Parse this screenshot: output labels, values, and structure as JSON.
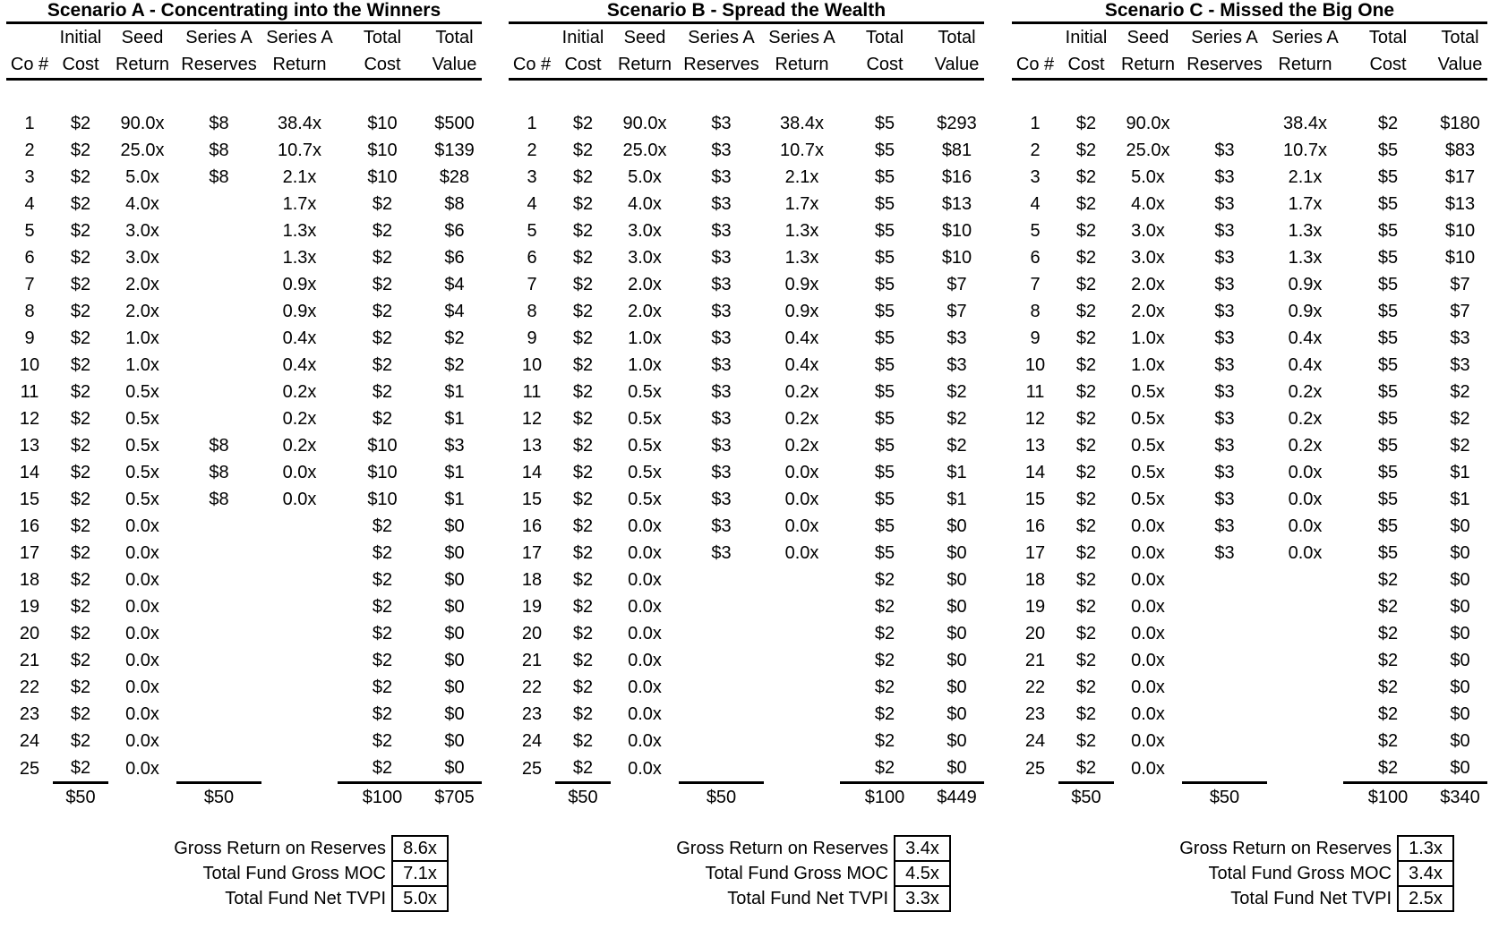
{
  "scenarios": [
    {
      "title": "Scenario A - Concentrating into the Winners",
      "columns": [
        {
          "top": "",
          "bottom": "Co #"
        },
        {
          "top": "Initial",
          "bottom": "Cost"
        },
        {
          "top": "Seed",
          "bottom": "Return"
        },
        {
          "top": "Series A",
          "bottom": "Reserves"
        },
        {
          "top": "Series A",
          "bottom": "Return"
        },
        {
          "top": "Total",
          "bottom": "Cost"
        },
        {
          "top": "Total",
          "bottom": "Value"
        }
      ],
      "rows": [
        [
          "1",
          "$2",
          "90.0x",
          "$8",
          "38.4x",
          "$10",
          "$500"
        ],
        [
          "2",
          "$2",
          "25.0x",
          "$8",
          "10.7x",
          "$10",
          "$139"
        ],
        [
          "3",
          "$2",
          "5.0x",
          "$8",
          "2.1x",
          "$10",
          "$28"
        ],
        [
          "4",
          "$2",
          "4.0x",
          "",
          "1.7x",
          "$2",
          "$8"
        ],
        [
          "5",
          "$2",
          "3.0x",
          "",
          "1.3x",
          "$2",
          "$6"
        ],
        [
          "6",
          "$2",
          "3.0x",
          "",
          "1.3x",
          "$2",
          "$6"
        ],
        [
          "7",
          "$2",
          "2.0x",
          "",
          "0.9x",
          "$2",
          "$4"
        ],
        [
          "8",
          "$2",
          "2.0x",
          "",
          "0.9x",
          "$2",
          "$4"
        ],
        [
          "9",
          "$2",
          "1.0x",
          "",
          "0.4x",
          "$2",
          "$2"
        ],
        [
          "10",
          "$2",
          "1.0x",
          "",
          "0.4x",
          "$2",
          "$2"
        ],
        [
          "11",
          "$2",
          "0.5x",
          "",
          "0.2x",
          "$2",
          "$1"
        ],
        [
          "12",
          "$2",
          "0.5x",
          "",
          "0.2x",
          "$2",
          "$1"
        ],
        [
          "13",
          "$2",
          "0.5x",
          "$8",
          "0.2x",
          "$10",
          "$3"
        ],
        [
          "14",
          "$2",
          "0.5x",
          "$8",
          "0.0x",
          "$10",
          "$1"
        ],
        [
          "15",
          "$2",
          "0.5x",
          "$8",
          "0.0x",
          "$10",
          "$1"
        ],
        [
          "16",
          "$2",
          "0.0x",
          "",
          "",
          "$2",
          "$0"
        ],
        [
          "17",
          "$2",
          "0.0x",
          "",
          "",
          "$2",
          "$0"
        ],
        [
          "18",
          "$2",
          "0.0x",
          "",
          "",
          "$2",
          "$0"
        ],
        [
          "19",
          "$2",
          "0.0x",
          "",
          "",
          "$2",
          "$0"
        ],
        [
          "20",
          "$2",
          "0.0x",
          "",
          "",
          "$2",
          "$0"
        ],
        [
          "21",
          "$2",
          "0.0x",
          "",
          "",
          "$2",
          "$0"
        ],
        [
          "22",
          "$2",
          "0.0x",
          "",
          "",
          "$2",
          "$0"
        ],
        [
          "23",
          "$2",
          "0.0x",
          "",
          "",
          "$2",
          "$0"
        ],
        [
          "24",
          "$2",
          "0.0x",
          "",
          "",
          "$2",
          "$0"
        ],
        [
          "25",
          "$2",
          "0.0x",
          "",
          "",
          "$2",
          "$0"
        ]
      ],
      "totals": [
        "",
        "$50",
        "",
        "$50",
        "",
        "$100",
        "$705"
      ],
      "summary": [
        {
          "label": "Gross Return on Reserves",
          "value": "8.6x"
        },
        {
          "label": "Total Fund Gross MOC",
          "value": "7.1x"
        },
        {
          "label": "Total Fund Net TVPI",
          "value": "5.0x"
        }
      ]
    },
    {
      "title": "Scenario B - Spread the Wealth",
      "columns": [
        {
          "top": "",
          "bottom": "Co #"
        },
        {
          "top": "Initial",
          "bottom": "Cost"
        },
        {
          "top": "Seed",
          "bottom": "Return"
        },
        {
          "top": "Series A",
          "bottom": "Reserves"
        },
        {
          "top": "Series A",
          "bottom": "Return"
        },
        {
          "top": "Total",
          "bottom": "Cost"
        },
        {
          "top": "Total",
          "bottom": "Value"
        }
      ],
      "rows": [
        [
          "1",
          "$2",
          "90.0x",
          "$3",
          "38.4x",
          "$5",
          "$293"
        ],
        [
          "2",
          "$2",
          "25.0x",
          "$3",
          "10.7x",
          "$5",
          "$81"
        ],
        [
          "3",
          "$2",
          "5.0x",
          "$3",
          "2.1x",
          "$5",
          "$16"
        ],
        [
          "4",
          "$2",
          "4.0x",
          "$3",
          "1.7x",
          "$5",
          "$13"
        ],
        [
          "5",
          "$2",
          "3.0x",
          "$3",
          "1.3x",
          "$5",
          "$10"
        ],
        [
          "6",
          "$2",
          "3.0x",
          "$3",
          "1.3x",
          "$5",
          "$10"
        ],
        [
          "7",
          "$2",
          "2.0x",
          "$3",
          "0.9x",
          "$5",
          "$7"
        ],
        [
          "8",
          "$2",
          "2.0x",
          "$3",
          "0.9x",
          "$5",
          "$7"
        ],
        [
          "9",
          "$2",
          "1.0x",
          "$3",
          "0.4x",
          "$5",
          "$3"
        ],
        [
          "10",
          "$2",
          "1.0x",
          "$3",
          "0.4x",
          "$5",
          "$3"
        ],
        [
          "11",
          "$2",
          "0.5x",
          "$3",
          "0.2x",
          "$5",
          "$2"
        ],
        [
          "12",
          "$2",
          "0.5x",
          "$3",
          "0.2x",
          "$5",
          "$2"
        ],
        [
          "13",
          "$2",
          "0.5x",
          "$3",
          "0.2x",
          "$5",
          "$2"
        ],
        [
          "14",
          "$2",
          "0.5x",
          "$3",
          "0.0x",
          "$5",
          "$1"
        ],
        [
          "15",
          "$2",
          "0.5x",
          "$3",
          "0.0x",
          "$5",
          "$1"
        ],
        [
          "16",
          "$2",
          "0.0x",
          "$3",
          "0.0x",
          "$5",
          "$0"
        ],
        [
          "17",
          "$2",
          "0.0x",
          "$3",
          "0.0x",
          "$5",
          "$0"
        ],
        [
          "18",
          "$2",
          "0.0x",
          "",
          "",
          "$2",
          "$0"
        ],
        [
          "19",
          "$2",
          "0.0x",
          "",
          "",
          "$2",
          "$0"
        ],
        [
          "20",
          "$2",
          "0.0x",
          "",
          "",
          "$2",
          "$0"
        ],
        [
          "21",
          "$2",
          "0.0x",
          "",
          "",
          "$2",
          "$0"
        ],
        [
          "22",
          "$2",
          "0.0x",
          "",
          "",
          "$2",
          "$0"
        ],
        [
          "23",
          "$2",
          "0.0x",
          "",
          "",
          "$2",
          "$0"
        ],
        [
          "24",
          "$2",
          "0.0x",
          "",
          "",
          "$2",
          "$0"
        ],
        [
          "25",
          "$2",
          "0.0x",
          "",
          "",
          "$2",
          "$0"
        ]
      ],
      "totals": [
        "",
        "$50",
        "",
        "$50",
        "",
        "$100",
        "$449"
      ],
      "summary": [
        {
          "label": "Gross Return on Reserves",
          "value": "3.4x"
        },
        {
          "label": "Total Fund Gross MOC",
          "value": "4.5x"
        },
        {
          "label": "Total Fund Net TVPI",
          "value": "3.3x"
        }
      ]
    },
    {
      "title": "Scenario C - Missed the Big One",
      "columns": [
        {
          "top": "",
          "bottom": "Co #"
        },
        {
          "top": "Initial",
          "bottom": "Cost"
        },
        {
          "top": "Seed",
          "bottom": "Return"
        },
        {
          "top": "Series A",
          "bottom": "Reserves"
        },
        {
          "top": "Series A",
          "bottom": "Return"
        },
        {
          "top": "Total",
          "bottom": "Cost"
        },
        {
          "top": "Total",
          "bottom": "Value"
        }
      ],
      "rows": [
        [
          "1",
          "$2",
          "90.0x",
          "",
          "38.4x",
          "$2",
          "$180"
        ],
        [
          "2",
          "$2",
          "25.0x",
          "$3",
          "10.7x",
          "$5",
          "$83"
        ],
        [
          "3",
          "$2",
          "5.0x",
          "$3",
          "2.1x",
          "$5",
          "$17"
        ],
        [
          "4",
          "$2",
          "4.0x",
          "$3",
          "1.7x",
          "$5",
          "$13"
        ],
        [
          "5",
          "$2",
          "3.0x",
          "$3",
          "1.3x",
          "$5",
          "$10"
        ],
        [
          "6",
          "$2",
          "3.0x",
          "$3",
          "1.3x",
          "$5",
          "$10"
        ],
        [
          "7",
          "$2",
          "2.0x",
          "$3",
          "0.9x",
          "$5",
          "$7"
        ],
        [
          "8",
          "$2",
          "2.0x",
          "$3",
          "0.9x",
          "$5",
          "$7"
        ],
        [
          "9",
          "$2",
          "1.0x",
          "$3",
          "0.4x",
          "$5",
          "$3"
        ],
        [
          "10",
          "$2",
          "1.0x",
          "$3",
          "0.4x",
          "$5",
          "$3"
        ],
        [
          "11",
          "$2",
          "0.5x",
          "$3",
          "0.2x",
          "$5",
          "$2"
        ],
        [
          "12",
          "$2",
          "0.5x",
          "$3",
          "0.2x",
          "$5",
          "$2"
        ],
        [
          "13",
          "$2",
          "0.5x",
          "$3",
          "0.2x",
          "$5",
          "$2"
        ],
        [
          "14",
          "$2",
          "0.5x",
          "$3",
          "0.0x",
          "$5",
          "$1"
        ],
        [
          "15",
          "$2",
          "0.5x",
          "$3",
          "0.0x",
          "$5",
          "$1"
        ],
        [
          "16",
          "$2",
          "0.0x",
          "$3",
          "0.0x",
          "$5",
          "$0"
        ],
        [
          "17",
          "$2",
          "0.0x",
          "$3",
          "0.0x",
          "$5",
          "$0"
        ],
        [
          "18",
          "$2",
          "0.0x",
          "",
          "",
          "$2",
          "$0"
        ],
        [
          "19",
          "$2",
          "0.0x",
          "",
          "",
          "$2",
          "$0"
        ],
        [
          "20",
          "$2",
          "0.0x",
          "",
          "",
          "$2",
          "$0"
        ],
        [
          "21",
          "$2",
          "0.0x",
          "",
          "",
          "$2",
          "$0"
        ],
        [
          "22",
          "$2",
          "0.0x",
          "",
          "",
          "$2",
          "$0"
        ],
        [
          "23",
          "$2",
          "0.0x",
          "",
          "",
          "$2",
          "$0"
        ],
        [
          "24",
          "$2",
          "0.0x",
          "",
          "",
          "$2",
          "$0"
        ],
        [
          "25",
          "$2",
          "0.0x",
          "",
          "",
          "$2",
          "$0"
        ]
      ],
      "totals": [
        "",
        "$50",
        "",
        "$50",
        "",
        "$100",
        "$340"
      ],
      "summary": [
        {
          "label": "Gross Return on Reserves",
          "value": "1.3x"
        },
        {
          "label": "Total Fund Gross MOC",
          "value": "3.4x"
        },
        {
          "label": "Total Fund Net TVPI",
          "value": "2.5x"
        }
      ]
    }
  ]
}
